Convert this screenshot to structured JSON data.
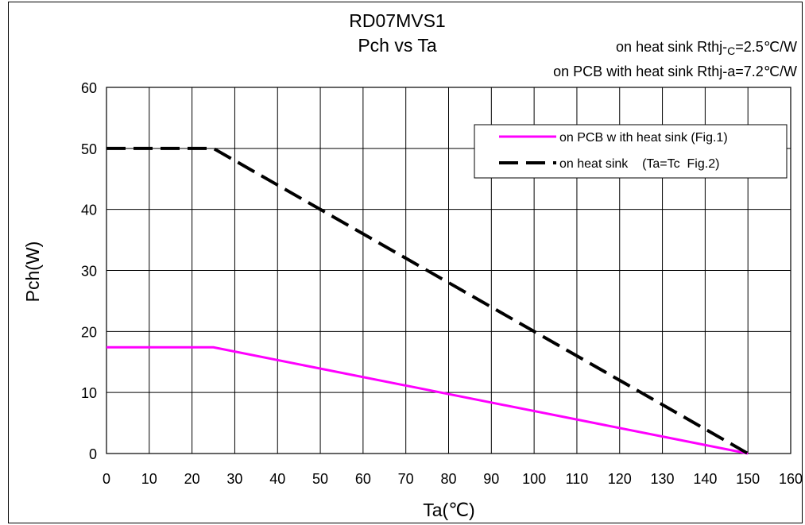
{
  "chart_data": {
    "type": "line",
    "title": "RD07MVS1",
    "subtitle": "Pch vs Ta",
    "annotations": [
      {
        "prefix": "on heat sink Rthj-",
        "subscript": "C",
        "suffix": "=2.5℃/W"
      },
      {
        "prefix": "on PCB with heat sink Rthj-a=7.2℃/W",
        "subscript": "",
        "suffix": ""
      }
    ],
    "xlabel": "Ta(℃)",
    "ylabel": "Pch(W)",
    "xlim": [
      0,
      160
    ],
    "ylim": [
      0,
      60
    ],
    "xticks": [
      0,
      10,
      20,
      30,
      40,
      50,
      60,
      70,
      80,
      90,
      100,
      110,
      120,
      130,
      140,
      150,
      160
    ],
    "yticks": [
      0,
      10,
      20,
      30,
      40,
      50,
      60
    ],
    "grid": true,
    "legend": "top-right",
    "series": [
      {
        "name": "on PCB w ith heat sink (Fig.1)",
        "color": "#ff00ff",
        "dash": "solid",
        "x": [
          0,
          25,
          150
        ],
        "y": [
          17.4,
          17.4,
          0
        ]
      },
      {
        "name": "on heat sink    (Ta=Tc  Fig.2)",
        "color": "#000000",
        "dash": "dashed",
        "x": [
          0,
          25,
          150
        ],
        "y": [
          50,
          50,
          0
        ]
      }
    ]
  }
}
